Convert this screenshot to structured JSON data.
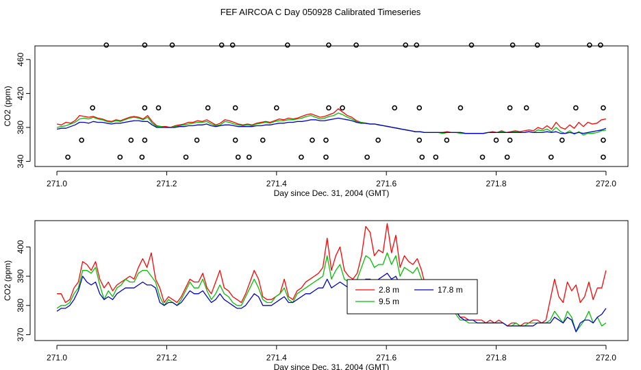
{
  "title": "FEF AIRCOA C  Day 050928  Calibrated Timeseries",
  "chart_data": [
    {
      "type": "line",
      "id": "top",
      "xlabel": "Day since Dec. 31, 2004 (GMT)",
      "ylabel": "CO2 (ppm)",
      "xlim": [
        270.96,
        272.04
      ],
      "ylim": [
        334,
        476
      ],
      "xticks": [
        271.0,
        271.2,
        271.4,
        271.6,
        271.8,
        272.0
      ],
      "xtick_labels": [
        "271.0",
        "271.2",
        "271.4",
        "271.6",
        "271.8",
        "272.0"
      ],
      "yticks": [
        340,
        380,
        420,
        460
      ],
      "ytick_labels": [
        "340",
        "380",
        "420",
        "460"
      ],
      "series": [
        {
          "name": "2.8 m",
          "color": "#ff0000",
          "y": [
            384,
            383,
            386,
            385,
            388,
            394,
            393,
            392,
            393,
            391,
            390,
            388,
            387,
            389,
            388,
            390,
            392,
            393,
            392,
            390,
            394,
            387,
            382,
            381,
            381,
            380,
            382,
            383,
            384,
            386,
            386,
            388,
            387,
            389,
            386,
            383,
            385,
            389,
            388,
            386,
            384,
            383,
            384,
            383,
            385,
            386,
            387,
            386,
            388,
            390,
            389,
            391,
            390,
            391,
            393,
            395,
            396,
            394,
            392,
            393,
            395,
            397,
            402,
            398,
            394,
            392,
            388,
            386,
            385,
            384,
            384,
            383,
            382,
            381,
            380,
            379,
            378,
            377,
            376,
            375,
            375,
            374,
            374,
            374,
            374,
            374,
            375,
            374,
            374,
            374,
            373,
            373,
            373,
            373,
            373,
            374,
            375,
            374,
            376,
            374,
            375,
            376,
            375,
            376,
            377,
            376,
            380,
            378,
            382,
            378,
            386,
            380,
            378,
            383,
            379,
            386,
            381,
            386,
            384,
            385,
            389,
            390
          ]
        },
        {
          "name": "9.5 m",
          "color": "#00c000",
          "y": [
            380,
            381,
            382,
            384,
            386,
            390,
            391,
            390,
            392,
            390,
            389,
            387,
            386,
            388,
            387,
            389,
            391,
            392,
            391,
            389,
            392,
            385,
            381,
            381,
            380,
            380,
            381,
            382,
            383,
            384,
            385,
            386,
            386,
            387,
            384,
            382,
            383,
            387,
            386,
            384,
            383,
            382,
            383,
            382,
            384,
            385,
            386,
            385,
            387,
            388,
            388,
            389,
            389,
            390,
            391,
            393,
            394,
            392,
            390,
            391,
            393,
            394,
            397,
            395,
            392,
            390,
            387,
            386,
            385,
            384,
            384,
            383,
            382,
            381,
            380,
            379,
            378,
            377,
            376,
            375,
            375,
            374,
            374,
            374,
            374,
            373,
            374,
            374,
            374,
            373,
            373,
            373,
            373,
            373,
            373,
            374,
            374,
            374,
            375,
            374,
            374,
            375,
            374,
            374,
            375,
            374,
            377,
            376,
            378,
            375,
            380,
            375,
            373,
            376,
            372,
            375,
            371,
            373,
            373,
            374,
            376,
            377
          ]
        },
        {
          "name": "17.8 m",
          "color": "#0000cc",
          "y": [
            378,
            379,
            379,
            381,
            383,
            386,
            386,
            385,
            387,
            386,
            386,
            385,
            384,
            385,
            385,
            386,
            387,
            388,
            388,
            387,
            387,
            383,
            380,
            380,
            380,
            380,
            380,
            381,
            381,
            382,
            382,
            383,
            383,
            384,
            382,
            381,
            382,
            383,
            383,
            382,
            381,
            381,
            381,
            381,
            382,
            382,
            383,
            383,
            384,
            385,
            385,
            386,
            386,
            387,
            387,
            388,
            389,
            389,
            388,
            388,
            389,
            390,
            391,
            390,
            389,
            388,
            386,
            385,
            385,
            384,
            384,
            383,
            382,
            381,
            380,
            379,
            378,
            377,
            376,
            375,
            375,
            374,
            374,
            374,
            374,
            374,
            374,
            374,
            374,
            374,
            373,
            373,
            373,
            373,
            373,
            374,
            374,
            374,
            374,
            374,
            374,
            374,
            374,
            374,
            375,
            374,
            374,
            374,
            375,
            374,
            375,
            373,
            373,
            374,
            373,
            374,
            373,
            374,
            375,
            376,
            377,
            379
          ]
        }
      ],
      "flag_points": {
        "x": [
          271.02,
          271.045,
          271.065,
          271.09,
          271.115,
          271.135,
          271.155,
          271.16,
          271.16,
          271.16,
          271.185,
          271.21,
          271.235,
          271.255,
          271.275,
          271.3,
          271.32,
          271.325,
          271.325,
          271.33,
          271.35,
          271.375,
          271.4,
          271.42,
          271.445,
          271.465,
          271.49,
          271.49,
          271.495,
          271.495,
          271.52,
          271.545,
          271.565,
          271.585,
          271.615,
          271.635,
          271.655,
          271.66,
          271.66,
          271.665,
          271.69,
          271.71,
          271.735,
          271.755,
          271.775,
          271.8,
          271.82,
          271.825,
          271.825,
          271.83,
          271.855,
          271.875,
          271.9,
          271.92,
          271.945,
          271.97,
          271.99,
          271.995,
          271.995,
          271.995
        ],
        "y": [
          345,
          365,
          403,
          477,
          345,
          365,
          345,
          365,
          403,
          477,
          403,
          477,
          345,
          365,
          403,
          477,
          477,
          365,
          403,
          345,
          345,
          365,
          403,
          477,
          345,
          365,
          345,
          365,
          403,
          477,
          403,
          477,
          345,
          365,
          403,
          477,
          477,
          403,
          365,
          345,
          345,
          365,
          403,
          477,
          345,
          365,
          345,
          365,
          403,
          477,
          403,
          477,
          345,
          365,
          403,
          477,
          477,
          403,
          365,
          345
        ]
      }
    },
    {
      "type": "line",
      "id": "bottom",
      "xlabel": "Day since Dec. 31, 2004 (GMT)",
      "ylabel": "CO2 (ppm)",
      "xlim": [
        270.96,
        272.04
      ],
      "ylim": [
        368,
        409
      ],
      "xticks": [
        271.0,
        271.2,
        271.4,
        271.6,
        271.8,
        272.0
      ],
      "xtick_labels": [
        "271.0",
        "271.2",
        "271.4",
        "271.6",
        "271.8",
        "272.0"
      ],
      "yticks": [
        370,
        380,
        390,
        400
      ],
      "ytick_labels": [
        "370",
        "380",
        "390",
        "400"
      ],
      "legend": {
        "position": "center-right",
        "entries": [
          "2.8 m",
          "9.5 m",
          "17.8 m"
        ]
      },
      "series": [
        {
          "name": "2.8 m",
          "color": "#ff0000",
          "y": [
            384,
            384,
            381,
            382,
            386,
            388,
            395,
            394,
            392,
            395,
            389,
            386,
            388,
            385,
            387,
            388,
            389,
            390,
            389,
            393,
            396,
            393,
            398,
            389,
            386,
            381,
            383,
            382,
            381,
            383,
            386,
            389,
            388,
            388,
            391,
            386,
            384,
            388,
            392,
            386,
            385,
            383,
            382,
            381,
            384,
            388,
            392,
            389,
            383,
            382,
            382,
            383,
            384,
            389,
            383,
            382,
            385,
            386,
            388,
            389,
            390,
            391,
            393,
            403,
            392,
            397,
            400,
            392,
            390,
            389,
            391,
            397,
            407,
            405,
            397,
            399,
            398,
            408,
            398,
            404,
            393,
            397,
            395,
            394,
            396,
            392,
            386,
            384,
            383,
            385,
            384,
            381,
            380,
            378,
            376,
            376,
            375,
            375,
            375,
            375,
            374,
            375,
            374,
            375,
            374,
            373,
            374,
            374,
            373,
            374,
            374,
            375,
            375,
            374,
            375,
            382,
            389,
            383,
            381,
            388,
            385,
            387,
            381,
            383,
            388,
            382,
            386,
            386,
            392
          ]
        },
        {
          "name": "9.5 m",
          "color": "#00c000",
          "y": [
            379,
            380,
            380,
            381,
            384,
            386,
            392,
            392,
            391,
            393,
            387,
            382,
            385,
            383,
            386,
            387,
            389,
            388,
            388,
            391,
            392,
            392,
            390,
            388,
            383,
            380,
            382,
            381,
            380,
            382,
            385,
            388,
            386,
            386,
            389,
            385,
            382,
            384,
            387,
            384,
            383,
            381,
            380,
            380,
            383,
            386,
            389,
            386,
            382,
            381,
            381,
            383,
            384,
            386,
            382,
            381,
            384,
            385,
            386,
            387,
            388,
            389,
            390,
            397,
            389,
            392,
            394,
            389,
            388,
            387,
            389,
            393,
            397,
            396,
            393,
            394,
            394,
            398,
            394,
            397,
            390,
            393,
            392,
            391,
            393,
            389,
            385,
            384,
            383,
            385,
            384,
            380,
            379,
            377,
            375,
            375,
            374,
            374,
            374,
            374,
            374,
            374,
            374,
            374,
            374,
            373,
            373,
            374,
            373,
            373,
            374,
            374,
            374,
            374,
            374,
            375,
            378,
            376,
            374,
            378,
            376,
            371,
            373,
            375,
            378,
            374,
            376,
            373,
            374
          ]
        },
        {
          "name": "17.8 m",
          "color": "#0000cc",
          "y": [
            378,
            379,
            379,
            380,
            382,
            385,
            390,
            388,
            387,
            388,
            384,
            382,
            383,
            382,
            384,
            385,
            386,
            386,
            386,
            387,
            388,
            387,
            387,
            386,
            381,
            380,
            381,
            381,
            380,
            381,
            383,
            385,
            384,
            384,
            385,
            383,
            381,
            382,
            384,
            382,
            381,
            380,
            379,
            379,
            380,
            382,
            384,
            383,
            380,
            380,
            380,
            381,
            382,
            383,
            381,
            381,
            382,
            383,
            384,
            384,
            385,
            386,
            386,
            389,
            386,
            387,
            388,
            387,
            386,
            386,
            387,
            388,
            389,
            389,
            388,
            389,
            390,
            391,
            389,
            390,
            387,
            388,
            388,
            387,
            388,
            387,
            385,
            385,
            384,
            384,
            383,
            381,
            380,
            378,
            376,
            375,
            375,
            375,
            374,
            374,
            374,
            374,
            374,
            374,
            374,
            373,
            373,
            373,
            373,
            373,
            373,
            373,
            374,
            374,
            374,
            374,
            376,
            375,
            374,
            376,
            375,
            371,
            374,
            375,
            375,
            374,
            376,
            377,
            379
          ]
        }
      ]
    }
  ]
}
